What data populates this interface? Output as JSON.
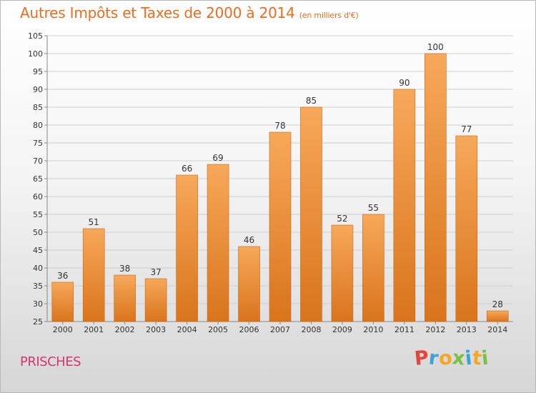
{
  "header": {
    "title": "Autres Impôts et Taxes de 2000 à 2014",
    "unit": "(en milliers d'€)"
  },
  "footer": {
    "commune": "PRISCHES"
  },
  "logo": {
    "letters": [
      "P",
      "r",
      "o",
      "x",
      "i",
      "t",
      "i"
    ],
    "colors": [
      "#e8443a",
      "#3aa3dc",
      "#f5a623",
      "#7ac043",
      "#3aa3dc",
      "#f5a623",
      "#7ac043"
    ]
  },
  "colors": {
    "bar_top": "#f7a85a",
    "bar_bottom": "#d9741c",
    "bar_edge": "#c9681a",
    "grid": "#cfcfcf",
    "title": "#ee6b1c",
    "commune": "#d6356f"
  },
  "chart_data": {
    "type": "bar",
    "categories": [
      "2000",
      "2001",
      "2002",
      "2003",
      "2004",
      "2005",
      "2006",
      "2007",
      "2008",
      "2009",
      "2010",
      "2011",
      "2012",
      "2013",
      "2014"
    ],
    "values": [
      36,
      51,
      38,
      37,
      66,
      69,
      46,
      78,
      85,
      52,
      55,
      90,
      100,
      77,
      28
    ],
    "title": "Autres Impôts et Taxes de 2000 à 2014",
    "xlabel": "",
    "ylabel": "",
    "ylim": [
      25,
      105
    ],
    "yticks": [
      25,
      30,
      35,
      40,
      45,
      50,
      55,
      60,
      65,
      70,
      75,
      80,
      85,
      90,
      95,
      100,
      105
    ],
    "grid": true,
    "legend": "none"
  }
}
